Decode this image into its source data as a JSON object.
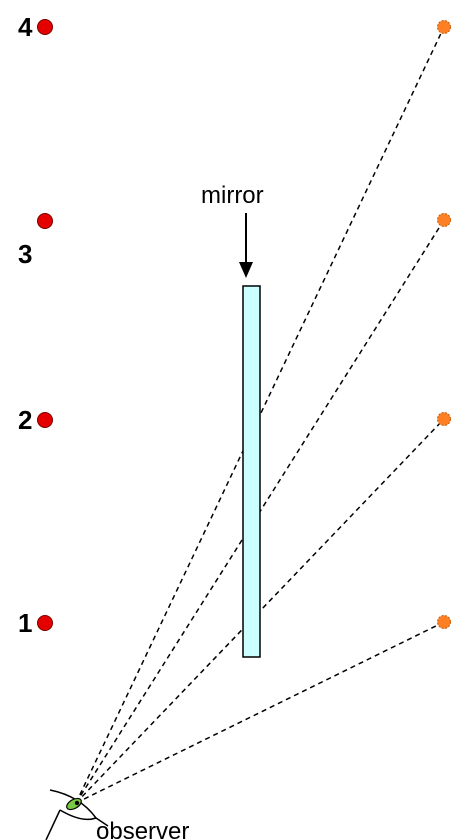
{
  "labels": {
    "mirror": "mirror",
    "observer": "observer"
  },
  "objects": [
    {
      "number": "1"
    },
    {
      "number": "2"
    },
    {
      "number": "3"
    },
    {
      "number": "4"
    }
  ],
  "colors": {
    "object": "#e50000",
    "image": "#ff7f24",
    "mirror_fill": "#ccffff",
    "eye_iris": "#7ac943",
    "ray": "#000000"
  }
}
